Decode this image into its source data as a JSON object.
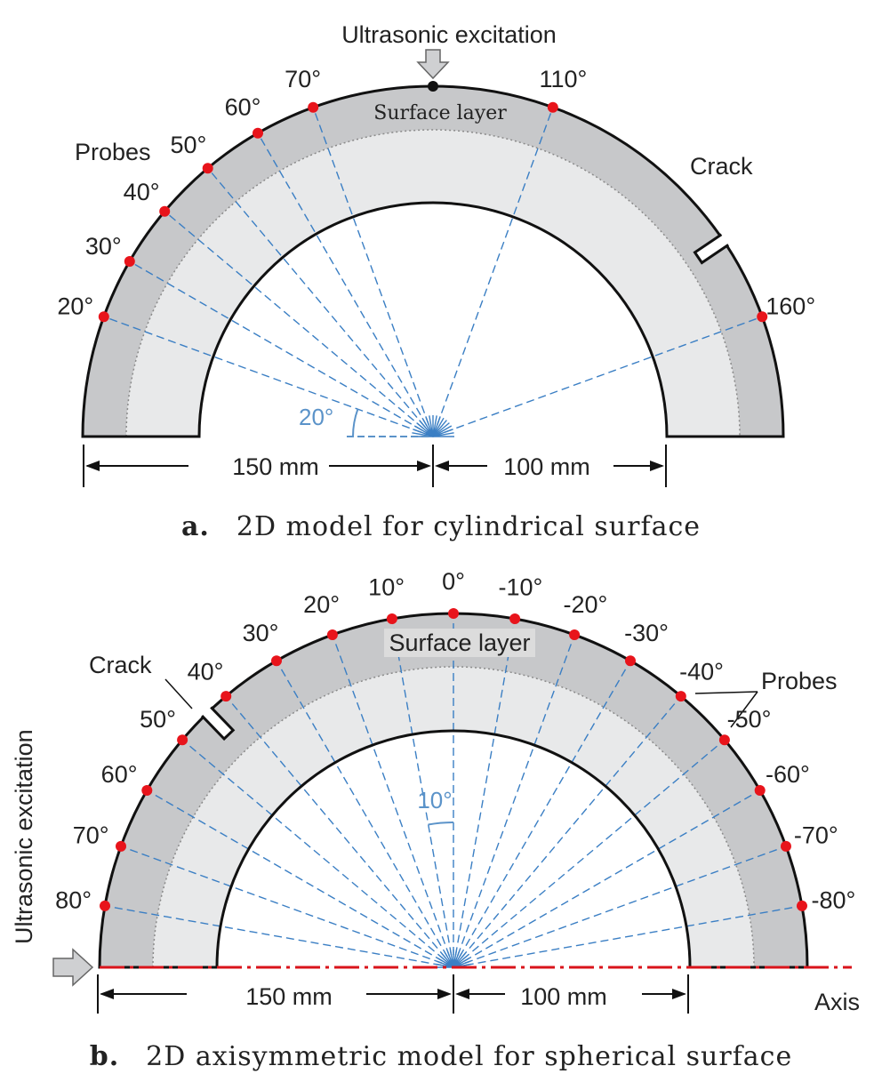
{
  "colors": {
    "outer_layer": "#c7c8ca",
    "inner_layer": "#e8e9ea",
    "outline": "#111111",
    "probe": "#e8141b",
    "ray": "#3b7fc4",
    "angle_label": "#5b93c9",
    "axis": "#d9141b",
    "arrow_fill": "#cfd0d2"
  },
  "panel_a": {
    "excitation_label": "Ultrasonic excitation",
    "surface_layer_label": "Surface layer",
    "probes_label": "Probes",
    "crack_label": "Crack",
    "angle_step_label": "20°",
    "dim_left": "150 mm",
    "dim_right": "100 mm",
    "caption_letter": "a.",
    "caption_text": "2D model for cylindrical surface",
    "probe_angles": [
      20,
      30,
      40,
      50,
      60,
      70,
      110,
      160
    ],
    "probe_labels": [
      "20°",
      "30°",
      "40°",
      "50°",
      "60°",
      "70°",
      "110°",
      "160°"
    ]
  },
  "panel_b": {
    "excitation_label": "Ultrasonic excitation",
    "surface_layer_label": "Surface layer",
    "probes_label": "Probes",
    "crack_label": "Crack",
    "angle_step_label": "10°",
    "dim_left": "150 mm",
    "dim_right": "100 mm",
    "axis_label": "Axis",
    "caption_letter": "b.",
    "caption_text": "2D axisymmetric model for spherical surface",
    "probe_angles": [
      80,
      70,
      60,
      50,
      40,
      30,
      20,
      10,
      0,
      -10,
      -20,
      -30,
      -40,
      -50,
      -60,
      -70,
      -80
    ],
    "probe_labels": [
      "80°",
      "70°",
      "60°",
      "50°",
      "40°",
      "30°",
      "20°",
      "10°",
      "0°",
      "-10°",
      "-20°",
      "-30°",
      "-40°",
      "-50°",
      "-60°",
      "-70°",
      "-80°"
    ]
  }
}
